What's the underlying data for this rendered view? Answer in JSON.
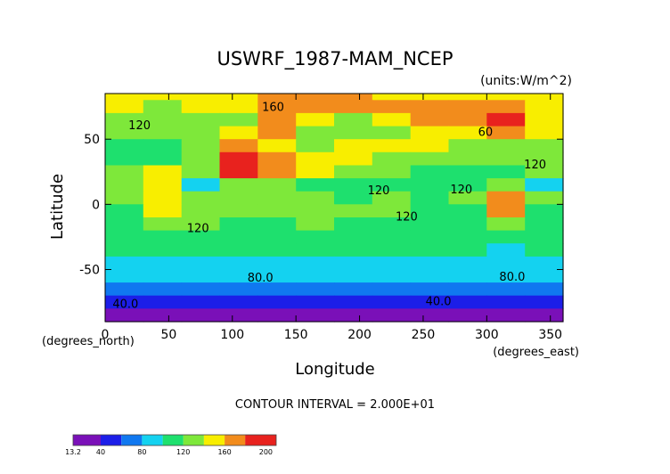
{
  "chart_data": {
    "type": "heatmap",
    "title": "USWRF_1987-MAM_NCEP",
    "units": "(units:W/m^2)",
    "xlabel": "Longitude",
    "ylabel": "Latitude",
    "xunit": "(degrees_east)",
    "yunit": "(degrees_north)",
    "xlim": [
      0,
      360
    ],
    "ylim": [
      -90,
      90
    ],
    "x_ticks": [
      0,
      50,
      100,
      150,
      200,
      250,
      300,
      350
    ],
    "y_ticks": [
      50,
      0,
      -50
    ],
    "contour_interval_text": "CONTOUR INTERVAL = 2.000E+01",
    "contour_labels": [
      {
        "text": "160",
        "lon": 132,
        "lat": 74
      },
      {
        "text": "120",
        "lon": 27,
        "lat": 60
      },
      {
        "text": "60",
        "lon": 299,
        "lat": 55
      },
      {
        "text": "120",
        "lon": 338,
        "lat": 30
      },
      {
        "text": "120",
        "lon": 215,
        "lat": 10
      },
      {
        "text": "120",
        "lon": 280,
        "lat": 11
      },
      {
        "text": "120",
        "lon": 237,
        "lat": -10
      },
      {
        "text": "120",
        "lon": 73,
        "lat": -19
      },
      {
        "text": "80.0",
        "lon": 122,
        "lat": -57
      },
      {
        "text": "80.0",
        "lon": 320,
        "lat": -56
      },
      {
        "text": "40.0",
        "lon": 16,
        "lat": -77
      },
      {
        "text": "40.0",
        "lon": 262,
        "lat": -75
      }
    ],
    "colorbar": {
      "min": 13.2,
      "max": 210,
      "tick_labels": [
        "13.2",
        "40",
        "80",
        "120",
        "160",
        "200"
      ],
      "tick_values": [
        13.2,
        40,
        80,
        120,
        160,
        200
      ]
    },
    "levels": [
      {
        "lo": 13.2,
        "hi": 40,
        "color": "#7a10b8"
      },
      {
        "lo": 40,
        "hi": 60,
        "color": "#1c1ee8"
      },
      {
        "lo": 60,
        "hi": 80,
        "color": "#1078f0"
      },
      {
        "lo": 80,
        "hi": 100,
        "color": "#14d2f0"
      },
      {
        "lo": 100,
        "hi": 120,
        "color": "#1ee06e"
      },
      {
        "lo": 120,
        "hi": 140,
        "color": "#7ee83a"
      },
      {
        "lo": 140,
        "hi": 160,
        "color": "#f8ee00"
      },
      {
        "lo": 160,
        "hi": 180,
        "color": "#f28c1c"
      },
      {
        "lo": 180,
        "hi": 210,
        "color": "#e8221e"
      }
    ],
    "field": [
      {
        "band": "85N to 80N",
        "zonal_values": [
          140,
          140,
          145,
          150,
          160,
          160,
          160,
          145,
          140,
          140,
          140,
          140
        ]
      },
      {
        "band": "80N to 70N",
        "zonal_values": [
          140,
          130,
          140,
          145,
          160,
          165,
          165,
          165,
          160,
          165,
          160,
          150
        ]
      },
      {
        "band": "70N to 60N",
        "zonal_values": [
          130,
          120,
          125,
          135,
          165,
          140,
          130,
          150,
          160,
          165,
          190,
          150
        ]
      },
      {
        "band": "60N to 50N",
        "zonal_values": [
          120,
          120,
          130,
          150,
          160,
          130,
          120,
          135,
          145,
          150,
          175,
          150
        ]
      },
      {
        "band": "50N to 40N",
        "zonal_values": [
          115,
          110,
          120,
          160,
          150,
          125,
          140,
          150,
          140,
          135,
          130,
          130
        ]
      },
      {
        "band": "40N to 30N",
        "zonal_values": [
          110,
          110,
          120,
          195,
          165,
          150,
          150,
          135,
          130,
          125,
          125,
          125
        ]
      },
      {
        "band": "30N to 20N",
        "zonal_values": [
          120,
          140,
          125,
          180,
          170,
          140,
          125,
          120,
          115,
          115,
          115,
          120
        ]
      },
      {
        "band": "20N to 10N",
        "zonal_values": [
          130,
          150,
          95,
          130,
          125,
          115,
          110,
          110,
          105,
          110,
          125,
          95
        ]
      },
      {
        "band": "10N to 0",
        "zonal_values": [
          125,
          145,
          120,
          125,
          130,
          120,
          115,
          120,
          115,
          120,
          175,
          120
        ]
      },
      {
        "band": "0 to 10S",
        "zonal_values": [
          115,
          140,
          125,
          120,
          130,
          125,
          120,
          125,
          115,
          118,
          170,
          115
        ]
      },
      {
        "band": "10S to 20S",
        "zonal_values": [
          110,
          120,
          120,
          115,
          115,
          120,
          115,
          110,
          110,
          110,
          125,
          110
        ]
      },
      {
        "band": "20S to 30S",
        "zonal_values": [
          105,
          110,
          115,
          105,
          105,
          110,
          105,
          105,
          105,
          105,
          105,
          105
        ]
      },
      {
        "band": "30S to 40S",
        "zonal_values": [
          100,
          102,
          105,
          100,
          100,
          105,
          100,
          100,
          100,
          100,
          90,
          100
        ]
      },
      {
        "band": "40S to 50S",
        "zonal_values": [
          95,
          97,
          96,
          95,
          92,
          88,
          90,
          95,
          95,
          95,
          88,
          92
        ]
      },
      {
        "band": "50S to 60S",
        "zonal_values": [
          82,
          85,
          85,
          85,
          82,
          82,
          82,
          82,
          82,
          82,
          82,
          82
        ]
      },
      {
        "band": "60S to 70S",
        "zonal_values": [
          72,
          72,
          72,
          72,
          72,
          72,
          72,
          72,
          72,
          72,
          72,
          72
        ]
      },
      {
        "band": "70S to 80S",
        "zonal_values": [
          45,
          48,
          50,
          50,
          45,
          45,
          45,
          48,
          45,
          45,
          50,
          50
        ]
      },
      {
        "band": "80S to 90S",
        "zonal_values": [
          25,
          25,
          25,
          25,
          25,
          25,
          25,
          25,
          25,
          25,
          25,
          25
        ]
      }
    ]
  }
}
